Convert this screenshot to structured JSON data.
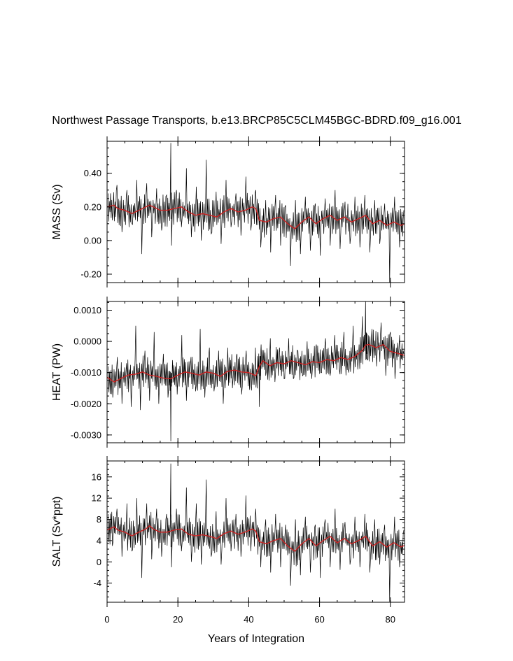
{
  "chart_data": {
    "type": "line",
    "title": "Northwest Passage Transports, b.e13.BRCP85C5CLM45BGC-BDRD.f09_g16.001",
    "xlabel": "Years of Integration",
    "xlim": [
      0,
      84
    ],
    "xticks": [
      0,
      20,
      40,
      60,
      80
    ],
    "xtick_labels": [
      "0",
      "20",
      "40",
      "60",
      "80"
    ],
    "colors": {
      "raw": "#000000",
      "smoothed": "#cc2222"
    },
    "panels": [
      {
        "name": "mass",
        "ylabel": "MASS (Sv)",
        "ylim": [
          -0.25,
          0.59
        ],
        "yticks": [
          -0.2,
          0.0,
          0.2,
          0.4
        ],
        "ytick_labels": [
          "-0.20",
          "0.00",
          "0.20",
          "0.40"
        ],
        "series": [
          {
            "name": "smoothed",
            "x": [
              0,
              2,
              3,
              5,
              7,
              9,
              11,
              12,
              13,
              15,
              17,
              19,
              21,
              23,
              25,
              27,
              29,
              31,
              33,
              35,
              37,
              39,
              41,
              42,
              43,
              45,
              47,
              49,
              51,
              53,
              55,
              57,
              59,
              61,
              63,
              65,
              67,
              69,
              71,
              73,
              75,
              77,
              79,
              81,
              83,
              84
            ],
            "y": [
              0.2,
              0.21,
              0.19,
              0.18,
              0.16,
              0.18,
              0.2,
              0.21,
              0.2,
              0.18,
              0.18,
              0.19,
              0.2,
              0.17,
              0.15,
              0.16,
              0.15,
              0.14,
              0.17,
              0.19,
              0.17,
              0.18,
              0.2,
              0.19,
              0.12,
              0.11,
              0.13,
              0.14,
              0.1,
              0.07,
              0.11,
              0.14,
              0.1,
              0.13,
              0.15,
              0.12,
              0.14,
              0.11,
              0.13,
              0.15,
              0.1,
              0.12,
              0.09,
              0.11,
              0.09,
              0.1
            ]
          },
          {
            "name": "raw",
            "x": [
              0.3,
              1.5,
              2.8,
              4.2,
              5.6,
              7.0,
              8.4,
              9.8,
              11.2,
              12.6,
              14.0,
              15.4,
              16.8,
              18.0,
              18.2,
              19.6,
              21.0,
              22.4,
              23.8,
              25.2,
              26.6,
              28.0,
              29.4,
              30.8,
              32.2,
              33.6,
              35.0,
              36.4,
              37.8,
              39.2,
              40.6,
              42.0,
              43.4,
              44.8,
              46.2,
              47.6,
              49.0,
              50.4,
              51.8,
              53.2,
              54.6,
              56.0,
              57.4,
              58.8,
              60.2,
              61.6,
              63.0,
              64.4,
              65.8,
              67.2,
              68.6,
              70.0,
              71.4,
              72.8,
              74.2,
              75.6,
              77.0,
              78.4,
              79.8,
              81.2,
              82.6,
              83.8
            ],
            "y": [
              0.28,
              0.12,
              0.33,
              0.05,
              0.3,
              0.1,
              0.36,
              -0.08,
              0.34,
              0.02,
              0.31,
              0.06,
              0.27,
              0.58,
              -0.03,
              0.3,
              0.08,
              0.43,
              0.02,
              0.32,
              0.0,
              0.48,
              0.04,
              0.29,
              -0.02,
              0.36,
              0.08,
              0.28,
              0.03,
              0.38,
              0.06,
              0.3,
              -0.04,
              0.24,
              -0.07,
              0.27,
              -0.03,
              0.21,
              -0.15,
              0.24,
              -0.08,
              0.26,
              -0.06,
              0.22,
              -0.09,
              0.25,
              -0.03,
              0.3,
              -0.05,
              0.23,
              -0.02,
              0.26,
              -0.04,
              0.27,
              -0.07,
              0.24,
              -0.02,
              0.22,
              -0.25,
              0.26,
              -0.04,
              0.18
            ]
          }
        ]
      },
      {
        "name": "heat",
        "ylabel": "HEAT (PW)",
        "ylim": [
          -0.00325,
          0.00128
        ],
        "yticks": [
          -0.003,
          -0.002,
          -0.001,
          0.0,
          0.001
        ],
        "ytick_labels": [
          "-0.0030",
          "-0.0020",
          "-0.0010",
          "0.0000",
          "0.0010"
        ],
        "series": [
          {
            "name": "smoothed",
            "x": [
              0,
              2,
              4,
              6,
              8,
              10,
              12,
              14,
              16,
              18,
              20,
              22,
              24,
              26,
              28,
              30,
              32,
              34,
              36,
              38,
              40,
              42,
              43,
              44,
              46,
              48,
              50,
              52,
              54,
              56,
              58,
              60,
              62,
              64,
              66,
              68,
              70,
              72,
              73,
              74,
              76,
              78,
              80,
              82,
              84
            ],
            "y": [
              -0.00115,
              -0.0013,
              -0.00118,
              -0.00108,
              -0.00105,
              -0.00098,
              -0.00108,
              -0.00112,
              -0.00118,
              -0.0012,
              -0.00108,
              -0.00098,
              -0.00102,
              -0.00108,
              -0.00098,
              -0.00102,
              -0.00112,
              -0.00096,
              -0.00092,
              -0.00098,
              -0.001,
              -0.0011,
              -0.0008,
              -0.00062,
              -0.00078,
              -0.00068,
              -0.00072,
              -0.00062,
              -0.00068,
              -0.00075,
              -0.00065,
              -0.00068,
              -0.00058,
              -0.00062,
              -0.00052,
              -0.00058,
              -0.00048,
              -0.0003,
              -0.00012,
              -0.0001,
              -0.0002,
              -0.0001,
              -0.00032,
              -0.00038,
              -0.00045
            ]
          },
          {
            "name": "raw",
            "x": [
              0.3,
              1.6,
              2.9,
              4.2,
              5.5,
              6.8,
              8.1,
              9.4,
              10.7,
              12.0,
              13.3,
              14.6,
              15.9,
              17.2,
              18.0,
              18.5,
              19.8,
              21.1,
              22.4,
              23.7,
              25.0,
              26.3,
              27.6,
              28.9,
              30.2,
              31.5,
              32.8,
              34.1,
              35.4,
              36.7,
              38.0,
              39.3,
              40.6,
              41.9,
              43.0,
              43.5,
              44.8,
              46.1,
              47.4,
              48.7,
              50.0,
              51.3,
              52.6,
              53.9,
              55.2,
              56.5,
              57.8,
              59.1,
              60.4,
              61.7,
              63.0,
              64.3,
              65.6,
              66.9,
              68.2,
              69.5,
              70.8,
              72.1,
              73.0,
              73.5,
              74.8,
              76.1,
              77.4,
              78.7,
              80.0,
              81.3,
              82.6,
              83.8
            ],
            "y": [
              -0.0008,
              -0.0018,
              -0.0005,
              -0.002,
              -0.0007,
              -0.0021,
              0.0005,
              -0.0022,
              -0.0003,
              -0.0019,
              0.0003,
              -0.002,
              -0.0004,
              -0.0018,
              -0.0032,
              -0.0006,
              -0.0017,
              0.0002,
              -0.0019,
              -0.0005,
              -0.0016,
              0.0004,
              -0.0018,
              -0.0002,
              -0.0016,
              -0.0003,
              -0.002,
              -0.0002,
              -0.0015,
              -0.0004,
              -0.0017,
              -0.0003,
              -0.0014,
              -0.0002,
              -0.0021,
              -0.0001,
              -0.0011,
              0.0001,
              -0.0013,
              -0.0002,
              -0.0012,
              0.0001,
              -0.0012,
              -0.0003,
              -0.0011,
              0.0,
              -0.0012,
              -0.0001,
              -0.001,
              0.0001,
              -0.0011,
              0.0002,
              -0.0009,
              0.0003,
              -0.001,
              0.0005,
              -0.0009,
              0.0008,
              0.0013,
              -0.0006,
              0.0004,
              -0.0008,
              0.0006,
              -0.0011,
              0.0003,
              -0.0012,
              0.0002,
              -0.0004
            ]
          }
        ]
      },
      {
        "name": "salt",
        "ylabel": "SALT (Sv*ppt)",
        "ylim": [
          -7.6,
          19.0
        ],
        "yticks": [
          -4,
          0,
          4,
          8,
          12,
          16
        ],
        "ytick_labels": [
          "-4",
          "0",
          "4",
          "8",
          "12",
          "16"
        ],
        "series": [
          {
            "name": "smoothed",
            "x": [
              0,
              2,
              3,
              5,
              7,
              9,
              11,
              12,
              13,
              15,
              17,
              19,
              21,
              23,
              25,
              27,
              29,
              31,
              33,
              35,
              37,
              39,
              41,
              42,
              43,
              45,
              47,
              49,
              51,
              53,
              55,
              57,
              59,
              61,
              63,
              65,
              67,
              69,
              71,
              73,
              75,
              77,
              79,
              81,
              83,
              84
            ],
            "y": [
              6.0,
              6.6,
              6.0,
              5.6,
              4.9,
              5.6,
              6.2,
              6.8,
              6.2,
              5.6,
              5.6,
              6.0,
              6.2,
              5.2,
              4.9,
              5.1,
              4.8,
              4.4,
              5.3,
              5.8,
              5.2,
              5.6,
              6.2,
              5.8,
              3.8,
              3.4,
              4.0,
              4.4,
              3.0,
              2.0,
              3.4,
              4.4,
              3.0,
              4.0,
              4.8,
              3.6,
              4.4,
              3.4,
              4.0,
              4.8,
              3.0,
              3.8,
              2.8,
              3.6,
              2.8,
              3.1
            ]
          },
          {
            "name": "raw",
            "x": [
              0.3,
              1.5,
              2.8,
              4.2,
              5.6,
              7.0,
              8.4,
              9.8,
              11.2,
              12.6,
              14.0,
              15.4,
              16.8,
              18.0,
              18.2,
              19.6,
              21.0,
              22.4,
              23.8,
              25.2,
              26.6,
              28.0,
              29.4,
              30.8,
              32.2,
              33.6,
              35.0,
              36.4,
              37.8,
              39.2,
              40.6,
              42.0,
              43.4,
              44.8,
              46.2,
              47.6,
              49.0,
              50.4,
              51.8,
              53.2,
              54.6,
              56.0,
              57.4,
              58.8,
              60.2,
              61.6,
              63.0,
              64.4,
              65.8,
              67.2,
              68.6,
              70.0,
              71.4,
              72.8,
              74.2,
              75.6,
              77.0,
              78.4,
              79.8,
              81.2,
              82.6,
              83.8
            ],
            "y": [
              9.0,
              3.0,
              10.0,
              1.0,
              11.0,
              2.0,
              12.0,
              -3.0,
              11.0,
              0.5,
              10.0,
              1.0,
              9.0,
              18.5,
              -1.0,
              10.0,
              2.0,
              14.0,
              0.0,
              11.0,
              -0.5,
              15.5,
              1.0,
              9.5,
              -0.5,
              12.0,
              2.0,
              9.0,
              1.0,
              12.5,
              2.0,
              10.0,
              -1.0,
              8.0,
              -2.0,
              9.0,
              -1.0,
              7.0,
              -4.5,
              8.0,
              -2.5,
              8.5,
              -2.0,
              7.0,
              -3.0,
              8.0,
              -1.0,
              10.0,
              -1.5,
              7.5,
              -0.5,
              8.5,
              -1.0,
              9.0,
              -2.0,
              8.0,
              -0.5,
              7.0,
              -7.5,
              8.5,
              -1.0,
              6.0
            ]
          }
        ]
      }
    ]
  }
}
